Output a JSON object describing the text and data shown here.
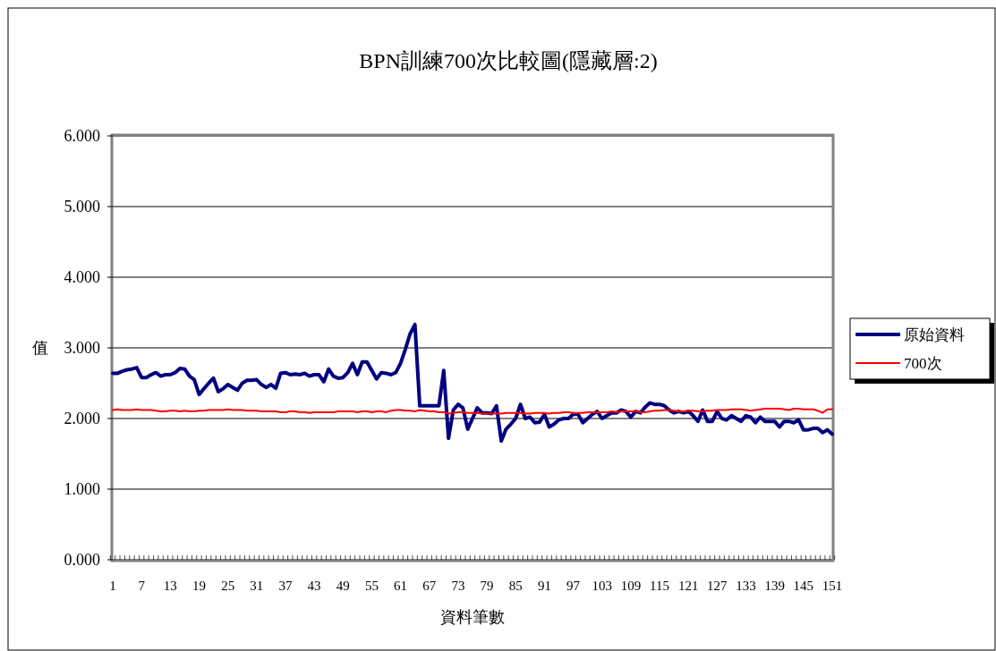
{
  "chart_data": {
    "type": "line",
    "title": "BPN訓練700次比較圖(隱藏層:2)",
    "xlabel": "資料筆數",
    "ylabel": "值",
    "categories": [
      "1",
      null,
      null,
      null,
      null,
      null,
      "7",
      null,
      null,
      null,
      null,
      null,
      "13",
      null,
      null,
      null,
      null,
      null,
      "19",
      null,
      null,
      null,
      null,
      null,
      "25",
      null,
      null,
      null,
      null,
      null,
      "31",
      null,
      null,
      null,
      null,
      null,
      "37",
      null,
      null,
      null,
      null,
      null,
      "43",
      null,
      null,
      null,
      null,
      null,
      "49",
      null,
      null,
      null,
      null,
      null,
      "55",
      null,
      null,
      null,
      null,
      null,
      "61",
      null,
      null,
      null,
      null,
      null,
      "67",
      null,
      null,
      null,
      null,
      null,
      "73",
      null,
      null,
      null,
      null,
      null,
      "79",
      null,
      null,
      null,
      null,
      null,
      "85",
      null,
      null,
      null,
      null,
      null,
      "91",
      null,
      null,
      null,
      null,
      null,
      "97",
      null,
      null,
      null,
      null,
      null,
      "103",
      null,
      null,
      null,
      null,
      null,
      "109",
      null,
      null,
      null,
      null,
      null,
      "115",
      null,
      null,
      null,
      null,
      null,
      "121",
      null,
      null,
      null,
      null,
      null,
      "127",
      null,
      null,
      null,
      null,
      null,
      "133",
      null,
      null,
      null,
      null,
      null,
      "139",
      null,
      null,
      null,
      null,
      null,
      "145",
      null,
      null,
      null,
      null,
      null,
      "151"
    ],
    "series": [
      {
        "name": "原始資料",
        "color": "#000080",
        "values": [
          2.64,
          2.64,
          2.67,
          2.69,
          2.7,
          2.72,
          2.58,
          2.58,
          2.62,
          2.65,
          2.6,
          2.62,
          2.62,
          2.65,
          2.71,
          2.7,
          2.6,
          2.55,
          2.34,
          2.42,
          2.5,
          2.57,
          2.38,
          2.42,
          2.48,
          2.44,
          2.4,
          2.5,
          2.54,
          2.54,
          2.55,
          2.48,
          2.44,
          2.48,
          2.43,
          2.64,
          2.65,
          2.62,
          2.63,
          2.62,
          2.64,
          2.6,
          2.62,
          2.62,
          2.52,
          2.7,
          2.6,
          2.57,
          2.58,
          2.65,
          2.78,
          2.62,
          2.8,
          2.8,
          2.68,
          2.56,
          2.65,
          2.64,
          2.62,
          2.65,
          2.78,
          2.98,
          3.2,
          3.33,
          2.18,
          2.18,
          2.18,
          2.18,
          2.18,
          2.68,
          1.72,
          2.12,
          2.2,
          2.15,
          1.85,
          2.0,
          2.15,
          2.08,
          2.08,
          2.07,
          2.18,
          1.68,
          1.85,
          1.92,
          2.0,
          2.2,
          2.0,
          2.02,
          1.94,
          1.95,
          2.06,
          1.88,
          1.92,
          1.98,
          2.0,
          2.0,
          2.06,
          2.06,
          1.94,
          2.0,
          2.06,
          2.1,
          2.0,
          2.04,
          2.08,
          2.08,
          2.12,
          2.1,
          2.02,
          2.1,
          2.08,
          2.16,
          2.22,
          2.2,
          2.2,
          2.18,
          2.12,
          2.08,
          2.1,
          2.08,
          2.1,
          2.04,
          1.96,
          2.12,
          1.96,
          1.96,
          2.1,
          2.0,
          1.98,
          2.04,
          2.0,
          1.96,
          2.04,
          2.02,
          1.94,
          2.02,
          1.96,
          1.96,
          1.96,
          1.88,
          1.96,
          1.96,
          1.94,
          1.98,
          1.84,
          1.84,
          1.86,
          1.86,
          1.8,
          1.84,
          1.78
        ]
      },
      {
        "name": "700次",
        "color": "#ff0000",
        "values": [
          2.12,
          2.13,
          2.12,
          2.12,
          2.12,
          2.13,
          2.12,
          2.12,
          2.12,
          2.11,
          2.1,
          2.1,
          2.11,
          2.11,
          2.1,
          2.11,
          2.1,
          2.1,
          2.11,
          2.11,
          2.12,
          2.12,
          2.12,
          2.12,
          2.13,
          2.12,
          2.12,
          2.12,
          2.11,
          2.11,
          2.11,
          2.1,
          2.1,
          2.1,
          2.1,
          2.09,
          2.09,
          2.1,
          2.1,
          2.09,
          2.09,
          2.08,
          2.09,
          2.09,
          2.09,
          2.09,
          2.09,
          2.1,
          2.1,
          2.1,
          2.1,
          2.09,
          2.1,
          2.1,
          2.09,
          2.1,
          2.1,
          2.09,
          2.11,
          2.12,
          2.12,
          2.11,
          2.11,
          2.1,
          2.12,
          2.11,
          2.1,
          2.1,
          2.09,
          2.09,
          2.07,
          2.08,
          2.09,
          2.09,
          2.08,
          2.08,
          2.08,
          2.07,
          2.07,
          2.07,
          2.07,
          2.07,
          2.08,
          2.08,
          2.08,
          2.08,
          2.07,
          2.07,
          2.08,
          2.08,
          2.08,
          2.07,
          2.08,
          2.08,
          2.09,
          2.09,
          2.08,
          2.08,
          2.08,
          2.09,
          2.09,
          2.09,
          2.09,
          2.09,
          2.1,
          2.09,
          2.1,
          2.1,
          2.1,
          2.1,
          2.09,
          2.09,
          2.1,
          2.11,
          2.11,
          2.12,
          2.12,
          2.11,
          2.1,
          2.1,
          2.11,
          2.11,
          2.1,
          2.1,
          2.11,
          2.11,
          2.12,
          2.12,
          2.12,
          2.13,
          2.13,
          2.13,
          2.12,
          2.11,
          2.12,
          2.13,
          2.14,
          2.14,
          2.14,
          2.14,
          2.13,
          2.12,
          2.14,
          2.14,
          2.13,
          2.13,
          2.13,
          2.11,
          2.08,
          2.13,
          2.13
        ]
      }
    ],
    "ylim": [
      0,
      6
    ],
    "yticks": [
      {
        "value": 0,
        "label": "0.000"
      },
      {
        "value": 1,
        "label": "1.000"
      },
      {
        "value": 2,
        "label": "2.000"
      },
      {
        "value": 3,
        "label": "3.000"
      },
      {
        "value": 4,
        "label": "4.000"
      },
      {
        "value": 5,
        "label": "5.000"
      },
      {
        "value": 6,
        "label": "6.000"
      }
    ],
    "grid": "y",
    "legend": "right",
    "line_style": "solid"
  }
}
